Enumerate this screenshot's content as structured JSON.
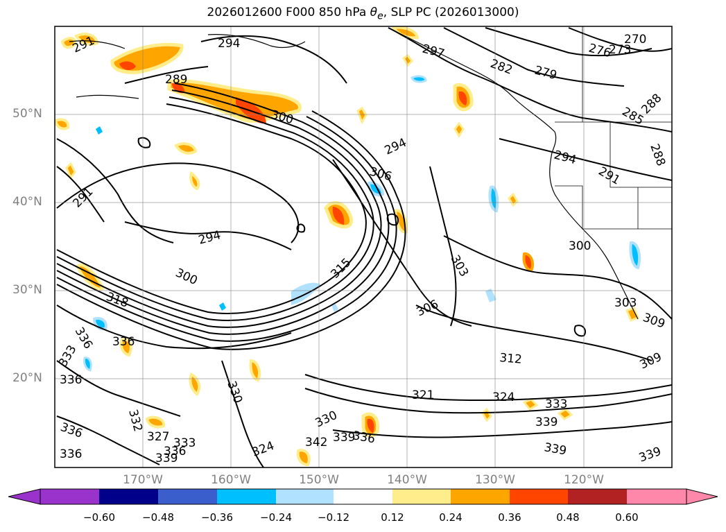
{
  "title": {
    "prefix": "2026012600 F000 850 hPa ",
    "symbol_main": "θ",
    "symbol_sub": "e",
    "suffix": ", SLP PC (2026013000)"
  },
  "axes": {
    "lat_labels": [
      "50°N",
      "40°N",
      "30°N",
      "20°N"
    ],
    "lon_labels": [
      "170°W",
      "160°W",
      "150°W",
      "140°W",
      "130°W",
      "120°W"
    ],
    "gridlines": true
  },
  "colorbar": {
    "ticks": [
      "−0.60",
      "−0.48",
      "−0.36",
      "−0.24",
      "−0.12",
      "0.12",
      "0.24",
      "0.36",
      "0.48",
      "0.60"
    ],
    "under_color": "#9933cc",
    "over_color": "#ff88aa",
    "colors": [
      "#00008b",
      "#3a5fcd",
      "#00bfff",
      "#b0e2ff",
      "#ffffff",
      "#ffec8b",
      "#ffa500",
      "#ff4500",
      "#b22222"
    ]
  },
  "contour_labels": [
    "291",
    "294",
    "297",
    "282",
    "279",
    "276",
    "273",
    "270",
    "289",
    "300",
    "294",
    "285",
    "288",
    "288",
    "306",
    "294",
    "291",
    "291",
    "294",
    "300",
    "303",
    "300",
    "315",
    "318",
    "306",
    "303",
    "309",
    "336",
    "336",
    "333",
    "336",
    "312",
    "309",
    "321",
    "324",
    "333",
    "330",
    "339",
    "330",
    "332",
    "336",
    "339",
    "327",
    "333",
    "342",
    "336",
    "339",
    "336",
    "339",
    "324",
    "336",
    "339"
  ]
}
